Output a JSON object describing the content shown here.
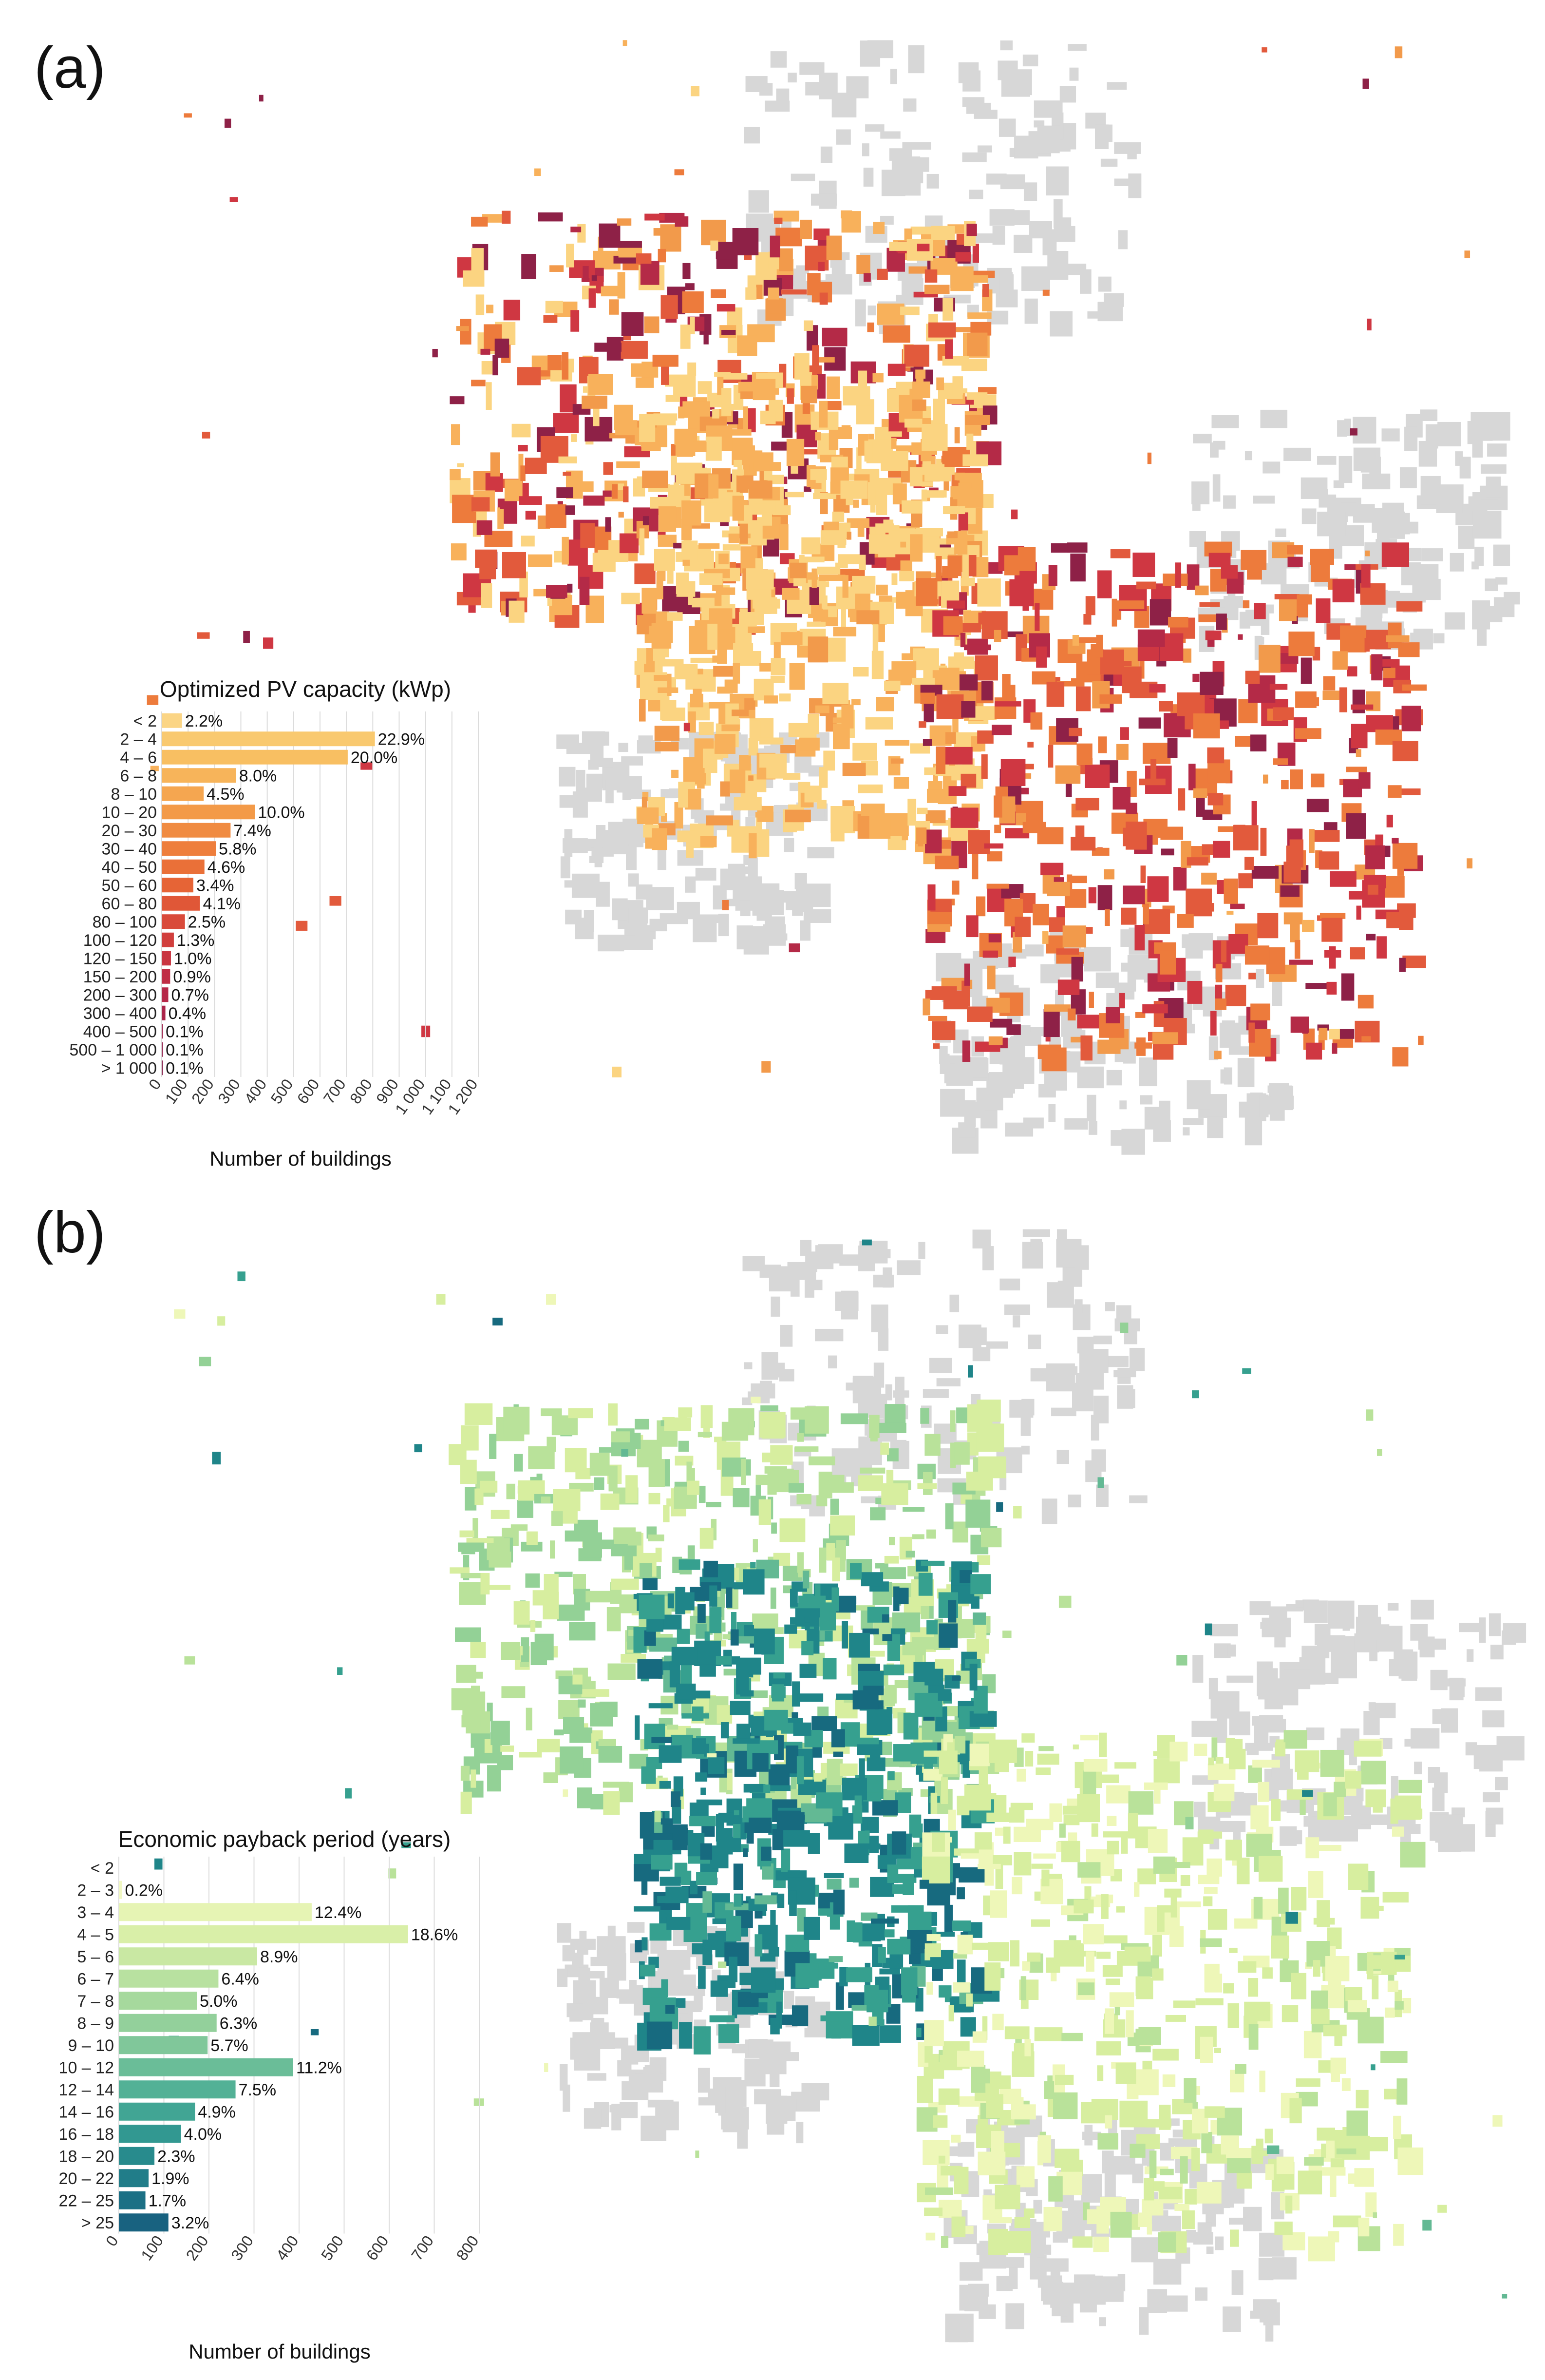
{
  "panels": [
    {
      "label": "(a)",
      "title": "Optimized PV capacity (kWp)",
      "xlabel": "Number of buildings",
      "palette": [
        "#f9cf79",
        "#f7b25a",
        "#f39a46",
        "#ee7c3a",
        "#e55a39",
        "#d4363f",
        "#b8254a",
        "#921f4e"
      ],
      "map_colors": [
        "#fbd481",
        "#f8b15b",
        "#f29a4b",
        "#ed7b3c",
        "#e25a3c",
        "#cf3742",
        "#b42a47",
        "#8e2147"
      ],
      "base_color": "#d7d7d7"
    },
    {
      "label": "(b)",
      "title": "Economic payback period (years)",
      "xlabel": "Number of buildings",
      "palette": [
        "#f3f9c6",
        "#def1ac",
        "#bfe4a2",
        "#9fd59b",
        "#79c598",
        "#4eb097",
        "#2c948f",
        "#1a6e85"
      ],
      "map_colors": [
        "#eef7b8",
        "#d7ee9f",
        "#b9e29a",
        "#93d196",
        "#63b994",
        "#36a08f",
        "#1f8589",
        "#176a7f"
      ],
      "base_color": "#d7d7d7"
    }
  ],
  "chart_data": [
    {
      "type": "bar",
      "orientation": "horizontal",
      "title": "Optimized PV capacity (kWp)",
      "xlabel": "Number of buildings",
      "ylabel": "",
      "xlim": [
        0,
        1200
      ],
      "xticks": [
        "0",
        "100",
        "200",
        "300",
        "400",
        "500",
        "600",
        "700",
        "800",
        "900",
        "1 000",
        "1 100",
        "1 200"
      ],
      "categories": [
        "< 2",
        "2 – 4",
        "4 – 6",
        "6 – 8",
        "8 – 10",
        "10 – 20",
        "20 – 30",
        "30 – 40",
        "40 – 50",
        "50 – 60",
        "60 – 80",
        "80 – 100",
        "100 – 120",
        "120 – 150",
        "150 – 200",
        "200 – 300",
        "300 – 400",
        "400 – 500",
        "500 – 1 000",
        "> 1 000"
      ],
      "values": [
        77,
        808,
        705,
        282,
        159,
        353,
        261,
        205,
        162,
        120,
        145,
        88,
        46,
        35,
        32,
        25,
        14,
        4,
        4,
        4
      ],
      "labels": [
        "2.2%",
        "22.9%",
        "20.0%",
        "8.0%",
        "4.5%",
        "10.0%",
        "7.4%",
        "5.8%",
        "4.6%",
        "3.4%",
        "4.1%",
        "2.5%",
        "1.3%",
        "1.0%",
        "0.9%",
        "0.7%",
        "0.4%",
        "0.1%",
        "0.1%",
        "0.1%"
      ],
      "colors": [
        "#fbd585",
        "#f9c96f",
        "#f8bf62",
        "#f7b45a",
        "#f5a650",
        "#f39a48",
        "#f08b41",
        "#ee7e3c",
        "#ea7038",
        "#e66436",
        "#e05737",
        "#d94a3a",
        "#d13f3d",
        "#c93541",
        "#c02e45",
        "#b62848",
        "#ab2449",
        "#9f214b",
        "#93204c",
        "#88204d"
      ],
      "grid": true
    },
    {
      "type": "bar",
      "orientation": "horizontal",
      "title": "Economic payback period (years)",
      "xlabel": "Number of buildings",
      "ylabel": "",
      "xlim": [
        0,
        800
      ],
      "xticks": [
        "0",
        "100",
        "200",
        "300",
        "400",
        "500",
        "600",
        "700",
        "800"
      ],
      "categories": [
        "< 2",
        "2 – 3",
        "3 – 4",
        "4 – 5",
        "5 – 6",
        "6 – 7",
        "7 – 8",
        "8 – 9",
        "9 – 10",
        "10 – 12",
        "12 – 14",
        "14 – 16",
        "16 – 18",
        "18 – 20",
        "20 – 22",
        "22 – 25",
        "> 25"
      ],
      "values": [
        0,
        7,
        428,
        642,
        307,
        221,
        173,
        217,
        197,
        387,
        259,
        169,
        138,
        79,
        66,
        59,
        110
      ],
      "labels": [
        "",
        "0.2%",
        "12.4%",
        "18.6%",
        "8.9%",
        "6.4%",
        "5.0%",
        "6.3%",
        "5.7%",
        "11.2%",
        "7.5%",
        "4.9%",
        "4.0%",
        "2.3%",
        "1.9%",
        "1.7%",
        "3.2%"
      ],
      "colors": [
        "#f6fbcc",
        "#f1f8c3",
        "#e6f4b4",
        "#d9efa8",
        "#c9e8a3",
        "#b8e1a0",
        "#a6d99d",
        "#93d09b",
        "#80c79a",
        "#6abd98",
        "#53b196",
        "#41a594",
        "#329891",
        "#288b8d",
        "#217d89",
        "#1c7085",
        "#186280"
      ],
      "grid": true
    }
  ]
}
